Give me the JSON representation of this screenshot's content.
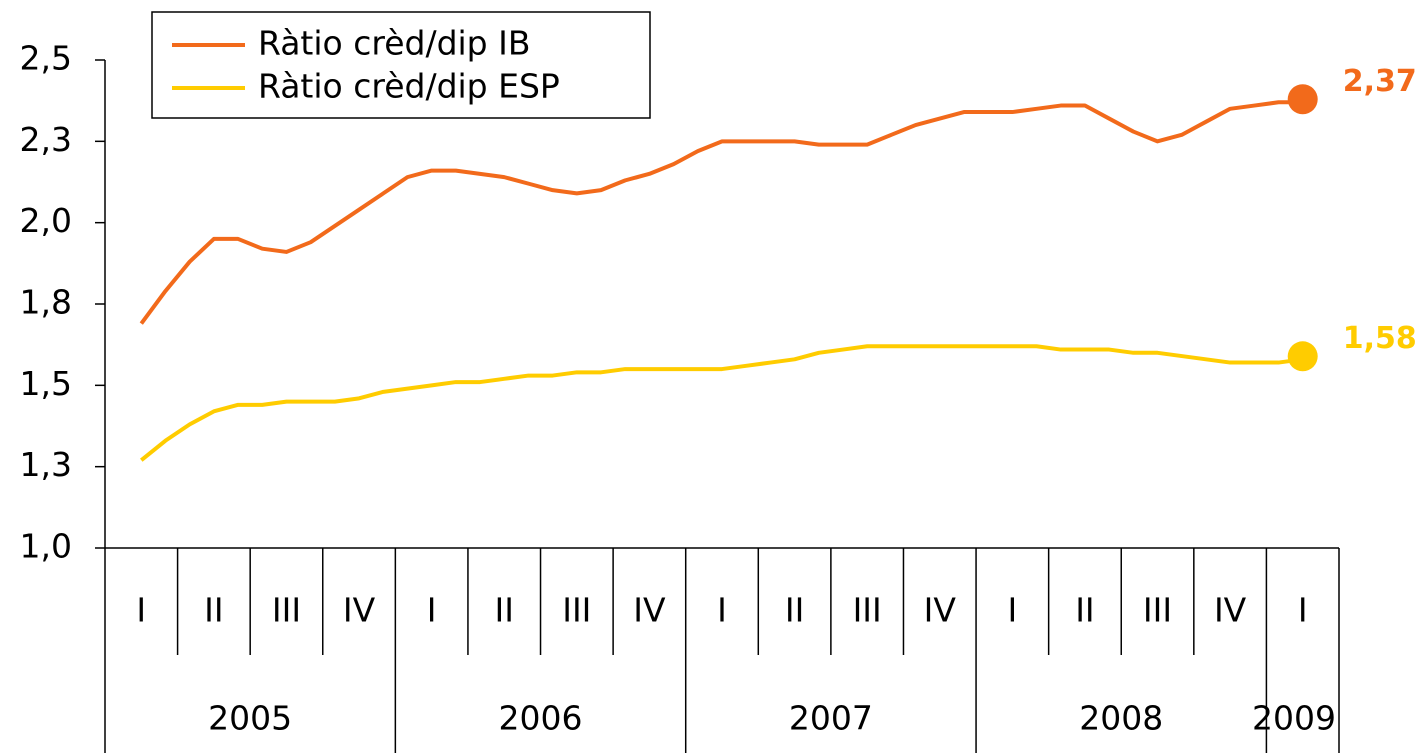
{
  "chart_data": {
    "type": "line",
    "categories": [
      "I",
      null,
      null,
      "II",
      null,
      null,
      "III",
      null,
      null,
      "IV",
      null,
      null,
      "I",
      null,
      null,
      "II",
      null,
      null,
      "III",
      null,
      null,
      "IV",
      null,
      null,
      "I",
      null,
      null,
      "II",
      null,
      null,
      "III",
      null,
      null,
      "IV",
      null,
      null,
      "I",
      null,
      null,
      "II",
      null,
      null,
      "III",
      null,
      null,
      "IV",
      null,
      null,
      "I"
    ],
    "years": [
      "2005",
      "2006",
      "2007",
      "2008",
      "2009"
    ],
    "series": [
      {
        "name": "Ràtio crèd/dip IB",
        "color": "#f26a1b",
        "values": [
          1.69,
          1.79,
          1.88,
          1.95,
          1.95,
          1.92,
          1.91,
          1.94,
          1.99,
          2.04,
          2.09,
          2.14,
          2.16,
          2.16,
          2.15,
          2.14,
          2.12,
          2.1,
          2.09,
          2.1,
          2.13,
          2.15,
          2.18,
          2.22,
          2.25,
          2.25,
          2.25,
          2.25,
          2.24,
          2.24,
          2.24,
          2.27,
          2.3,
          2.32,
          2.34,
          2.34,
          2.34,
          2.35,
          2.36,
          2.36,
          2.32,
          2.28,
          2.25,
          2.27,
          2.31,
          2.35,
          2.36,
          2.37,
          2.37
        ],
        "value_labels": [
          null,
          null,
          null,
          null,
          null,
          null,
          null,
          null,
          null,
          null,
          null,
          null,
          null,
          null,
          null,
          null,
          null,
          null,
          null,
          null,
          null,
          null,
          null,
          null,
          null,
          null,
          null,
          null,
          null,
          null,
          null,
          null,
          null,
          null,
          null,
          null,
          null,
          null,
          null,
          null,
          null,
          null,
          null,
          null,
          null,
          null,
          null,
          null,
          "2,37"
        ]
      },
      {
        "name": "Ràtio crèd/dip ESP",
        "color": "#ffcc00",
        "values": [
          1.27,
          1.33,
          1.38,
          1.42,
          1.44,
          1.44,
          1.45,
          1.45,
          1.45,
          1.46,
          1.48,
          1.49,
          1.5,
          1.51,
          1.51,
          1.52,
          1.53,
          1.53,
          1.54,
          1.54,
          1.55,
          1.55,
          1.55,
          1.55,
          1.55,
          1.56,
          1.57,
          1.58,
          1.6,
          1.61,
          1.62,
          1.62,
          1.62,
          1.62,
          1.62,
          1.62,
          1.62,
          1.62,
          1.61,
          1.61,
          1.61,
          1.6,
          1.6,
          1.59,
          1.58,
          1.57,
          1.57,
          1.57,
          1.58
        ],
        "value_labels": [
          null,
          null,
          null,
          null,
          null,
          null,
          null,
          null,
          null,
          null,
          null,
          null,
          null,
          null,
          null,
          null,
          null,
          null,
          null,
          null,
          null,
          null,
          null,
          null,
          null,
          null,
          null,
          null,
          null,
          null,
          null,
          null,
          null,
          null,
          null,
          null,
          null,
          null,
          null,
          null,
          null,
          null,
          null,
          null,
          null,
          null,
          null,
          null,
          "1,58"
        ]
      }
    ],
    "ylim": [
      1.0,
      2.5
    ],
    "yticks": [
      {
        "value": 1.0,
        "label": "1,0"
      },
      {
        "value": 1.25,
        "label": "1,3"
      },
      {
        "value": 1.5,
        "label": "1,5"
      },
      {
        "value": 1.75,
        "label": "1,8"
      },
      {
        "value": 2.0,
        "label": "2,0"
      },
      {
        "value": 2.25,
        "label": "2,3"
      },
      {
        "value": 2.5,
        "label": "2,5"
      }
    ],
    "legend": "top-left"
  }
}
